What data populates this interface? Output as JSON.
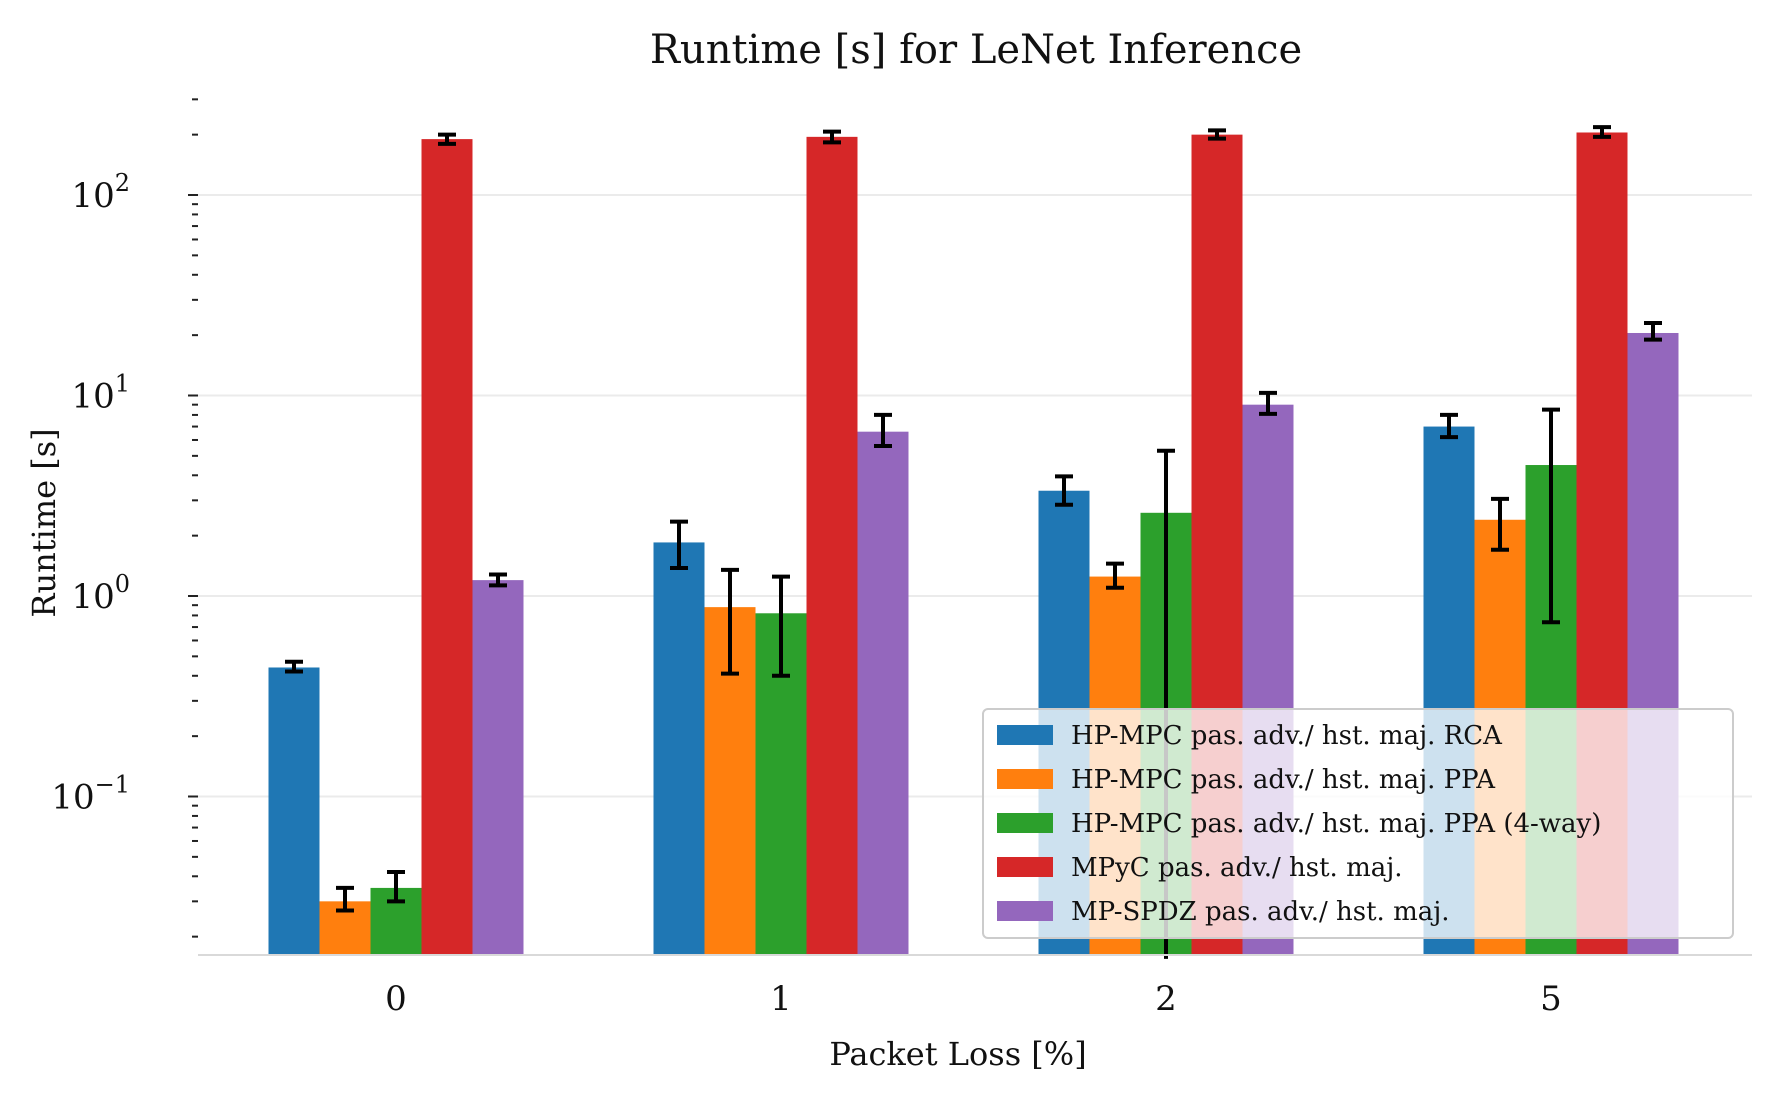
{
  "chart_data": {
    "type": "bar",
    "title": "Runtime [s] for LeNet Inference",
    "xlabel": "Packet Loss [%]",
    "ylabel": "Runtime [s]",
    "yscale": "log",
    "ylim": [
      0.0155,
      350
    ],
    "ytick_labels": [
      {
        "value": 0.1,
        "base": "10",
        "exp": "−1"
      },
      {
        "value": 1,
        "base": "10",
        "exp": "0"
      },
      {
        "value": 10,
        "base": "10",
        "exp": "1"
      },
      {
        "value": 100,
        "base": "10",
        "exp": "2"
      }
    ],
    "categories": [
      "0",
      "1",
      "2",
      "5"
    ],
    "grid": "horizontal",
    "legend_position": "lower-right",
    "series": [
      {
        "name": "HP-MPC pas. adv./ hst. maj. RCA",
        "color": "#1f77b4",
        "values": [
          0.44,
          1.85,
          3.35,
          7.0
        ],
        "err_low": [
          0.42,
          1.38,
          2.85,
          6.2
        ],
        "err_high": [
          0.47,
          2.35,
          3.95,
          8.0
        ]
      },
      {
        "name": "HP-MPC pas. adv./ hst. maj. PPA",
        "color": "#ff7f0e",
        "values": [
          0.03,
          0.88,
          1.25,
          2.4
        ],
        "err_low": [
          0.027,
          0.41,
          1.1,
          1.7
        ],
        "err_high": [
          0.035,
          1.35,
          1.45,
          3.05
        ]
      },
      {
        "name": "HP-MPC pas. adv./ hst. maj. PPA (4-way)",
        "color": "#2ca02c",
        "values": [
          0.035,
          0.82,
          2.6,
          4.5
        ],
        "err_low": [
          0.03,
          0.4,
          0.015,
          0.74
        ],
        "err_high": [
          0.042,
          1.25,
          5.3,
          8.5
        ]
      },
      {
        "name": "MPyC pas. adv./ hst. maj.",
        "color": "#d62728",
        "values": [
          190,
          195,
          200,
          205
        ],
        "err_low": [
          180,
          183,
          191,
          195
        ],
        "err_high": [
          200,
          207,
          210,
          218
        ]
      },
      {
        "name": "MP-SPDZ pas. adv./ hst. maj.",
        "color": "#9467bd",
        "values": [
          1.2,
          6.6,
          9.0,
          20.5
        ],
        "err_low": [
          1.13,
          5.6,
          8.1,
          19.0
        ],
        "err_high": [
          1.28,
          8.0,
          10.3,
          23.0
        ]
      }
    ]
  }
}
